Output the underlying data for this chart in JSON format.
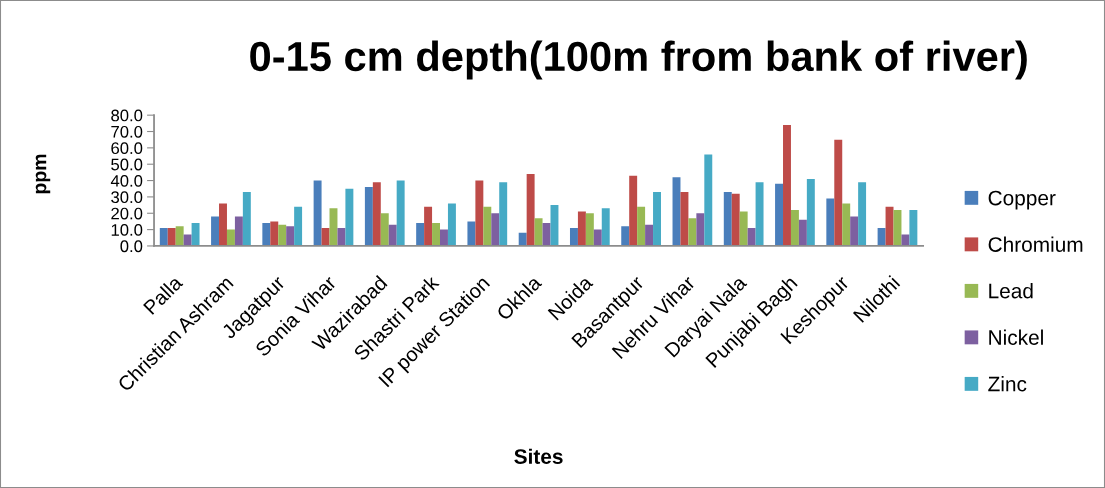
{
  "chart_data": {
    "type": "bar",
    "title": "0-15 cm depth(100m from bank of river)",
    "xlabel": "Sites",
    "ylabel": "ppm",
    "categories": [
      "Palla",
      "Christian Ashram",
      "Jagatpur",
      "Sonia Vihar",
      "Wazirabad",
      "Shastri Park",
      "IP power Station",
      "Okhla",
      "Noida",
      "Basantpur",
      "Nehru Vihar",
      "Daryai Nala",
      "Punjabi Bagh",
      "Keshopur",
      "Nilothi"
    ],
    "series": [
      {
        "name": "Copper",
        "color": "#4a7ebb",
        "values": [
          11,
          18,
          14,
          40,
          36,
          14,
          15,
          8,
          11,
          12,
          42,
          33,
          38,
          29,
          11
        ]
      },
      {
        "name": "Chromium",
        "color": "#be4b48",
        "values": [
          11,
          26,
          15,
          11,
          39,
          24,
          40,
          44,
          21,
          43,
          33,
          32,
          74,
          65,
          24
        ]
      },
      {
        "name": "Lead",
        "color": "#98b954",
        "values": [
          12,
          10,
          13,
          23,
          20,
          14,
          24,
          17,
          20,
          24,
          17,
          21,
          22,
          26,
          22
        ]
      },
      {
        "name": "Nickel",
        "color": "#7d60a0",
        "values": [
          7,
          18,
          12,
          11,
          13,
          10,
          20,
          14,
          10,
          13,
          20,
          11,
          16,
          18,
          7
        ]
      },
      {
        "name": "Zinc",
        "color": "#46aac5",
        "values": [
          14,
          33,
          24,
          35,
          40,
          26,
          39,
          25,
          23,
          33,
          56,
          39,
          41,
          39,
          22
        ]
      }
    ],
    "ylim": [
      0,
      80
    ],
    "yticks": [
      {
        "value": 0,
        "label": "0.0"
      },
      {
        "value": 10,
        "label": "10.0"
      },
      {
        "value": 20,
        "label": "20.0"
      },
      {
        "value": 30,
        "label": "30.0"
      },
      {
        "value": 40,
        "label": "40.0"
      },
      {
        "value": 50,
        "label": "50.0"
      },
      {
        "value": 60,
        "label": "60.0"
      },
      {
        "value": 70,
        "label": "70.0"
      },
      {
        "value": 80,
        "label": "80.0"
      }
    ],
    "legend": "right"
  }
}
